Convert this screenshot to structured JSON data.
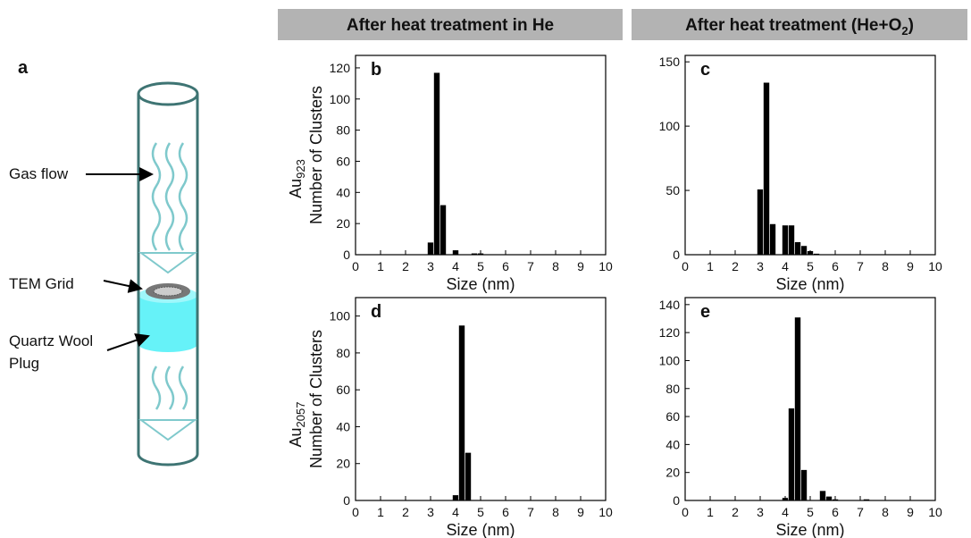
{
  "headers": [
    {
      "text": "After heat treatment in He"
    },
    {
      "text": "After heat treatment (He+O",
      "sub": "2",
      "tail": ")"
    }
  ],
  "row_labels": [
    {
      "text": "Au",
      "sub": "923"
    },
    {
      "text": "Au",
      "sub": "2057"
    }
  ],
  "diagram": {
    "label": "a",
    "gas_flow": "Gas flow",
    "tem_grid": "TEM Grid",
    "quartz": [
      "Quartz Wool",
      "Plug"
    ]
  },
  "chart_data": [
    {
      "type": "histogram",
      "label": "b",
      "ylabel": "Number of Clusters",
      "xlabel": "Size (nm)",
      "color": "#000000",
      "bins": [
        2.875,
        3.125,
        3.375,
        3.625,
        3.875,
        4.125,
        4.375,
        4.625,
        4.875,
        5.125
      ],
      "values": [
        8,
        117,
        32,
        0,
        3,
        0,
        0,
        1,
        1
      ],
      "xlim": [
        0,
        10
      ],
      "xticks": [
        0,
        1,
        2,
        3,
        4,
        5,
        6,
        7,
        8,
        9,
        10
      ],
      "ylim": [
        0,
        128
      ],
      "yticks": [
        0,
        20,
        40,
        60,
        80,
        100,
        120
      ]
    },
    {
      "type": "histogram",
      "label": "c",
      "xlabel": "Size (nm)",
      "color": "#000000",
      "bins": [
        2.875,
        3.125,
        3.375,
        3.625,
        3.875,
        4.125,
        4.375,
        4.625,
        4.875,
        5.125,
        5.375
      ],
      "values": [
        51,
        134,
        24,
        0,
        23,
        23,
        10,
        7,
        3,
        1
      ],
      "xlim": [
        0,
        10
      ],
      "xticks": [
        0,
        1,
        2,
        3,
        4,
        5,
        6,
        7,
        8,
        9,
        10
      ],
      "ylim": [
        0,
        155
      ],
      "yticks": [
        0,
        50,
        100,
        150
      ]
    },
    {
      "type": "histogram",
      "label": "d",
      "ylabel": "Number of Clusters",
      "xlabel": "Size (nm)",
      "color": "#000000",
      "bins": [
        3.875,
        4.125,
        4.375,
        4.625
      ],
      "values": [
        3,
        95,
        26
      ],
      "xlim": [
        0,
        10
      ],
      "xticks": [
        0,
        1,
        2,
        3,
        4,
        5,
        6,
        7,
        8,
        9,
        10
      ],
      "ylim": [
        0,
        110
      ],
      "yticks": [
        0,
        20,
        40,
        60,
        80,
        100
      ]
    },
    {
      "type": "histogram",
      "label": "e",
      "xlabel": "Size (nm)",
      "color": "#000000",
      "bins": [
        3.875,
        4.125,
        4.375,
        4.625,
        4.875,
        5.125,
        5.375,
        5.625,
        5.875,
        6.125,
        6.375,
        6.625,
        6.875,
        7.125,
        7.375
      ],
      "values": [
        2,
        66,
        131,
        22,
        0,
        0,
        7,
        3,
        1,
        0,
        0,
        0,
        0,
        1
      ],
      "xlim": [
        0,
        10
      ],
      "xticks": [
        0,
        1,
        2,
        3,
        4,
        5,
        6,
        7,
        8,
        9,
        10
      ],
      "ylim": [
        0,
        145
      ],
      "yticks": [
        0,
        20,
        40,
        60,
        80,
        100,
        120,
        140
      ]
    }
  ]
}
